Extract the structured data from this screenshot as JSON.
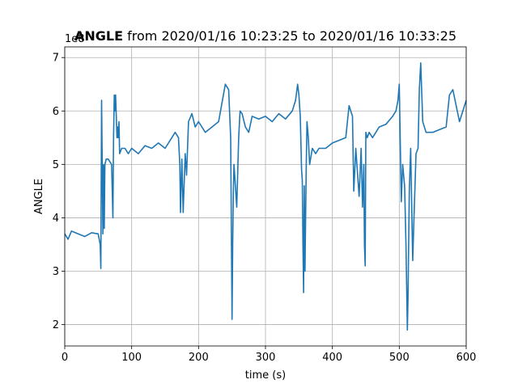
{
  "chart_data": {
    "type": "line",
    "title_bold": "ANGLE",
    "title_rest": " from 2020/01/16 10:23:25 to 2020/01/16 10:33:25",
    "xlabel": "time (s)",
    "ylabel": "ANGLE",
    "y_offset_label": "1e8",
    "xlim": [
      0,
      600
    ],
    "ylim": [
      1.6,
      7.2
    ],
    "xticks": [
      0,
      100,
      200,
      300,
      400,
      500,
      600
    ],
    "yticks": [
      2,
      3,
      4,
      5,
      6,
      7
    ],
    "grid": true,
    "series": [
      {
        "color": "#1f77b4",
        "x": [
          0,
          5,
          10,
          20,
          30,
          40,
          50,
          53,
          54,
          55,
          56,
          57,
          58,
          59,
          60,
          62,
          65,
          70,
          72,
          73,
          74,
          75,
          76,
          77,
          78,
          79,
          80,
          81,
          82,
          85,
          90,
          95,
          100,
          110,
          120,
          130,
          140,
          150,
          160,
          165,
          170,
          172,
          173,
          175,
          177,
          180,
          182,
          185,
          190,
          195,
          200,
          210,
          220,
          230,
          240,
          245,
          248,
          250,
          251,
          252,
          253,
          255,
          257,
          260,
          262,
          265,
          270,
          275,
          280,
          290,
          300,
          310,
          320,
          330,
          340,
          345,
          348,
          350,
          352,
          354,
          355,
          356,
          357,
          358,
          359,
          360,
          361,
          362,
          364,
          366,
          370,
          375,
          380,
          390,
          400,
          410,
          420,
          425,
          430,
          432,
          435,
          440,
          443,
          445,
          447,
          448,
          449,
          450,
          452,
          455,
          460,
          470,
          480,
          490,
          495,
          498,
          500,
          503,
          505,
          508,
          510,
          512,
          513,
          515,
          517,
          520,
          522,
          525,
          528,
          530,
          532,
          535,
          540,
          550,
          560,
          570,
          575,
          580,
          590,
          600
        ],
        "y": [
          3.7,
          3.6,
          3.75,
          3.7,
          3.65,
          3.72,
          3.7,
          3.5,
          3.05,
          6.2,
          5.0,
          3.7,
          5.0,
          3.8,
          5.0,
          5.1,
          5.1,
          5.0,
          4.0,
          5.5,
          6.3,
          6.0,
          6.3,
          5.9,
          5.5,
          5.7,
          5.5,
          5.8,
          5.2,
          5.3,
          5.3,
          5.2,
          5.3,
          5.2,
          5.35,
          5.3,
          5.4,
          5.3,
          5.5,
          5.6,
          5.5,
          5.0,
          4.1,
          5.1,
          4.1,
          5.2,
          4.8,
          5.8,
          5.95,
          5.7,
          5.8,
          5.6,
          5.7,
          5.8,
          6.5,
          6.4,
          5.5,
          2.1,
          3.5,
          4.5,
          5.0,
          4.6,
          4.2,
          5.5,
          6.0,
          5.95,
          5.7,
          5.6,
          5.9,
          5.85,
          5.9,
          5.8,
          5.95,
          5.85,
          6.0,
          6.2,
          6.5,
          6.3,
          5.9,
          4.9,
          4.7,
          3.5,
          2.6,
          4.6,
          3.0,
          4.0,
          5.0,
          5.8,
          5.5,
          5.0,
          5.3,
          5.2,
          5.3,
          5.3,
          5.4,
          5.45,
          5.5,
          6.1,
          5.9,
          4.5,
          5.3,
          4.4,
          5.3,
          4.2,
          5.0,
          3.5,
          3.1,
          5.6,
          5.5,
          5.6,
          5.5,
          5.7,
          5.75,
          5.9,
          6.0,
          6.2,
          6.5,
          4.3,
          5.0,
          4.6,
          3.5,
          1.9,
          2.5,
          4.5,
          5.3,
          3.2,
          4.0,
          5.2,
          5.3,
          6.4,
          6.9,
          5.8,
          5.6,
          5.6,
          5.65,
          5.7,
          6.3,
          6.4,
          5.8,
          6.2
        ]
      }
    ]
  }
}
